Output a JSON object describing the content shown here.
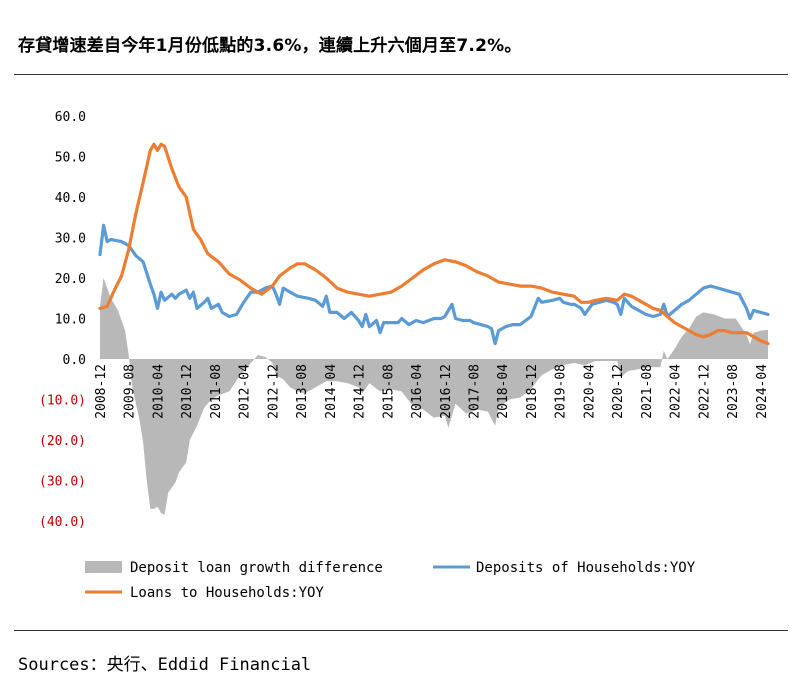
{
  "title": "存貸增速差自今年1月份低點的3.6%，連續上升六個月至7.2%。",
  "source": "Sources：央行、Eddid Financial",
  "colors": {
    "difference": "#b8b8b8",
    "deposits": "#5b9bd5",
    "loans": "#ed7d31",
    "negative_label": "#c00000",
    "positive_label": "#000000"
  },
  "chart_data": {
    "type": "line",
    "title": "",
    "xlabel": "",
    "ylabel": "",
    "ylim": [
      -40,
      60
    ],
    "yticks": [
      60,
      50,
      40,
      30,
      20,
      10,
      0,
      -10,
      -20,
      -30,
      -40
    ],
    "ytick_labels": [
      "60.0",
      "50.0",
      "40.0",
      "30.0",
      "20.0",
      "10.0",
      "0.0",
      "(10.0)",
      "(20.0)",
      "(30.0)",
      "(40.0)"
    ],
    "x_tick_labels": [
      "2008-12",
      "2009-08",
      "2010-04",
      "2010-12",
      "2011-08",
      "2012-04",
      "2012-12",
      "2013-08",
      "2014-04",
      "2014-12",
      "2015-08",
      "2016-04",
      "2016-12",
      "2017-08",
      "2018-04",
      "2018-12",
      "2019-08",
      "2020-04",
      "2020-12",
      "2021-08",
      "2022-04",
      "2022-12",
      "2023-08",
      "2024-04"
    ],
    "x_start": "2008-12",
    "x_end": "2024-06",
    "legend_position": "bottom",
    "legend": [
      "Deposit loan growth difference",
      "Deposits of Households:YOY",
      "Loans to Households:YOY"
    ],
    "series": [
      {
        "name": "Deposits of Households:YOY",
        "style": "line",
        "points": [
          [
            "2008-12",
            25.8
          ],
          [
            "2009-01",
            33.0
          ],
          [
            "2009-02",
            29.0
          ],
          [
            "2009-03",
            29.5
          ],
          [
            "2009-06",
            29.0
          ],
          [
            "2009-08",
            28.0
          ],
          [
            "2009-10",
            25.5
          ],
          [
            "2009-12",
            24.0
          ],
          [
            "2010-02",
            18.5
          ],
          [
            "2010-03",
            16.0
          ],
          [
            "2010-04",
            12.5
          ],
          [
            "2010-05",
            16.5
          ],
          [
            "2010-06",
            14.5
          ],
          [
            "2010-08",
            16.0
          ],
          [
            "2010-09",
            15.0
          ],
          [
            "2010-10",
            16.0
          ],
          [
            "2010-12",
            17.0
          ],
          [
            "2011-01",
            15.0
          ],
          [
            "2011-02",
            16.5
          ],
          [
            "2011-03",
            12.5
          ],
          [
            "2011-05",
            14.0
          ],
          [
            "2011-06",
            15.0
          ],
          [
            "2011-07",
            12.5
          ],
          [
            "2011-09",
            13.5
          ],
          [
            "2011-10",
            11.5
          ],
          [
            "2011-12",
            10.5
          ],
          [
            "2012-02",
            11.0
          ],
          [
            "2012-04",
            14.0
          ],
          [
            "2012-06",
            16.5
          ],
          [
            "2012-08",
            16.5
          ],
          [
            "2012-10",
            17.5
          ],
          [
            "2012-12",
            18.0
          ],
          [
            "2013-01",
            16.0
          ],
          [
            "2013-02",
            13.5
          ],
          [
            "2013-03",
            17.5
          ],
          [
            "2013-05",
            16.5
          ],
          [
            "2013-07",
            15.5
          ],
          [
            "2013-10",
            15.0
          ],
          [
            "2013-12",
            14.5
          ],
          [
            "2014-02",
            13.0
          ],
          [
            "2014-03",
            15.5
          ],
          [
            "2014-04",
            11.5
          ],
          [
            "2014-06",
            11.5
          ],
          [
            "2014-08",
            10.0
          ],
          [
            "2014-10",
            11.5
          ],
          [
            "2014-12",
            9.5
          ],
          [
            "2015-01",
            8.0
          ],
          [
            "2015-02",
            11.0
          ],
          [
            "2015-03",
            8.0
          ],
          [
            "2015-05",
            9.5
          ],
          [
            "2015-06",
            6.5
          ],
          [
            "2015-07",
            9.0
          ],
          [
            "2015-09",
            9.0
          ],
          [
            "2015-11",
            9.0
          ],
          [
            "2015-12",
            10.0
          ],
          [
            "2016-02",
            8.5
          ],
          [
            "2016-04",
            9.5
          ],
          [
            "2016-06",
            9.0
          ],
          [
            "2016-09",
            10.0
          ],
          [
            "2016-11",
            10.0
          ],
          [
            "2016-12",
            10.5
          ],
          [
            "2017-02",
            13.5
          ],
          [
            "2017-03",
            10.0
          ],
          [
            "2017-05",
            9.5
          ],
          [
            "2017-07",
            9.5
          ],
          [
            "2017-08",
            9.0
          ],
          [
            "2017-10",
            8.5
          ],
          [
            "2017-12",
            8.0
          ],
          [
            "2018-01",
            7.5
          ],
          [
            "2018-02",
            3.8
          ],
          [
            "2018-03",
            7.0
          ],
          [
            "2018-05",
            8.0
          ],
          [
            "2018-07",
            8.5
          ],
          [
            "2018-09",
            8.5
          ],
          [
            "2018-12",
            10.5
          ],
          [
            "2019-02",
            15.0
          ],
          [
            "2019-03",
            14.0
          ],
          [
            "2019-06",
            14.5
          ],
          [
            "2019-08",
            15.0
          ],
          [
            "2019-09",
            14.0
          ],
          [
            "2019-11",
            13.5
          ],
          [
            "2019-12",
            13.5
          ],
          [
            "2020-02",
            12.5
          ],
          [
            "2020-03",
            11.0
          ],
          [
            "2020-05",
            13.5
          ],
          [
            "2020-07",
            14.0
          ],
          [
            "2020-09",
            14.5
          ],
          [
            "2020-11",
            14.0
          ],
          [
            "2020-12",
            13.5
          ],
          [
            "2021-01",
            11.0
          ],
          [
            "2021-02",
            15.0
          ],
          [
            "2021-04",
            13.0
          ],
          [
            "2021-06",
            12.0
          ],
          [
            "2021-08",
            11.0
          ],
          [
            "2021-10",
            10.5
          ],
          [
            "2021-12",
            11.0
          ],
          [
            "2022-01",
            13.5
          ],
          [
            "2022-02",
            10.5
          ],
          [
            "2022-04",
            12.0
          ],
          [
            "2022-06",
            13.5
          ],
          [
            "2022-08",
            14.5
          ],
          [
            "2022-10",
            16.0
          ],
          [
            "2022-12",
            17.5
          ],
          [
            "2023-02",
            18.0
          ],
          [
            "2023-04",
            17.5
          ],
          [
            "2023-06",
            17.0
          ],
          [
            "2023-08",
            16.5
          ],
          [
            "2023-10",
            16.0
          ],
          [
            "2023-12",
            12.5
          ],
          [
            "2024-01",
            10.0
          ],
          [
            "2024-02",
            12.0
          ],
          [
            "2024-04",
            11.5
          ],
          [
            "2024-06",
            11.0
          ]
        ]
      },
      {
        "name": "Loans to Households:YOY",
        "style": "line",
        "points": [
          [
            "2008-12",
            12.5
          ],
          [
            "2009-02",
            13.0
          ],
          [
            "2009-04",
            17.0
          ],
          [
            "2009-06",
            20.5
          ],
          [
            "2009-08",
            27.0
          ],
          [
            "2009-10",
            36.0
          ],
          [
            "2009-12",
            43.5
          ],
          [
            "2010-02",
            51.5
          ],
          [
            "2010-03",
            53.0
          ],
          [
            "2010-04",
            51.5
          ],
          [
            "2010-05",
            53.0
          ],
          [
            "2010-06",
            52.5
          ],
          [
            "2010-08",
            47.0
          ],
          [
            "2010-10",
            42.5
          ],
          [
            "2010-12",
            40.0
          ],
          [
            "2011-02",
            32.0
          ],
          [
            "2011-04",
            29.5
          ],
          [
            "2011-06",
            26.0
          ],
          [
            "2011-09",
            24.0
          ],
          [
            "2011-12",
            21.0
          ],
          [
            "2012-03",
            19.5
          ],
          [
            "2012-06",
            17.5
          ],
          [
            "2012-09",
            16.0
          ],
          [
            "2012-12",
            18.0
          ],
          [
            "2013-02",
            20.5
          ],
          [
            "2013-05",
            22.5
          ],
          [
            "2013-07",
            23.5
          ],
          [
            "2013-09",
            23.5
          ],
          [
            "2013-12",
            22.0
          ],
          [
            "2014-03",
            20.0
          ],
          [
            "2014-06",
            17.5
          ],
          [
            "2014-09",
            16.5
          ],
          [
            "2014-12",
            16.0
          ],
          [
            "2015-03",
            15.5
          ],
          [
            "2015-06",
            16.0
          ],
          [
            "2015-09",
            16.5
          ],
          [
            "2015-12",
            18.0
          ],
          [
            "2016-03",
            20.0
          ],
          [
            "2016-06",
            22.0
          ],
          [
            "2016-09",
            23.5
          ],
          [
            "2016-12",
            24.5
          ],
          [
            "2017-03",
            24.0
          ],
          [
            "2017-06",
            23.0
          ],
          [
            "2017-09",
            21.5
          ],
          [
            "2017-12",
            20.5
          ],
          [
            "2018-03",
            19.0
          ],
          [
            "2018-06",
            18.5
          ],
          [
            "2018-09",
            18.0
          ],
          [
            "2018-12",
            18.0
          ],
          [
            "2019-03",
            17.5
          ],
          [
            "2019-06",
            16.5
          ],
          [
            "2019-09",
            16.0
          ],
          [
            "2019-12",
            15.5
          ],
          [
            "2020-02",
            14.0
          ],
          [
            "2020-04",
            14.0
          ],
          [
            "2020-06",
            14.5
          ],
          [
            "2020-09",
            15.0
          ],
          [
            "2020-12",
            14.5
          ],
          [
            "2021-02",
            16.0
          ],
          [
            "2021-04",
            15.5
          ],
          [
            "2021-06",
            14.5
          ],
          [
            "2021-08",
            13.5
          ],
          [
            "2021-10",
            12.5
          ],
          [
            "2021-12",
            12.0
          ],
          [
            "2022-02",
            10.5
          ],
          [
            "2022-04",
            9.0
          ],
          [
            "2022-06",
            8.0
          ],
          [
            "2022-08",
            7.0
          ],
          [
            "2022-10",
            6.0
          ],
          [
            "2022-12",
            5.5
          ],
          [
            "2023-02",
            6.0
          ],
          [
            "2023-04",
            7.0
          ],
          [
            "2023-06",
            7.0
          ],
          [
            "2023-08",
            6.5
          ],
          [
            "2023-10",
            6.5
          ],
          [
            "2023-12",
            6.5
          ],
          [
            "2024-02",
            5.5
          ],
          [
            "2024-04",
            4.5
          ],
          [
            "2024-06",
            3.8
          ]
        ]
      },
      {
        "name": "Deposit loan growth difference",
        "style": "area",
        "points": [
          [
            "2008-12",
            13.0
          ],
          [
            "2009-01",
            20.0
          ],
          [
            "2009-03",
            15.0
          ],
          [
            "2009-05",
            12.0
          ],
          [
            "2009-07",
            7.0
          ],
          [
            "2009-08",
            1.0
          ],
          [
            "2009-09",
            -7.0
          ],
          [
            "2009-11",
            -15.0
          ],
          [
            "2009-12",
            -20.5
          ],
          [
            "2010-01",
            -30.0
          ],
          [
            "2010-02",
            -37.0
          ],
          [
            "2010-03",
            -37.0
          ],
          [
            "2010-04",
            -36.5
          ],
          [
            "2010-05",
            -38.0
          ],
          [
            "2010-06",
            -38.5
          ],
          [
            "2010-07",
            -33.0
          ],
          [
            "2010-09",
            -30.5
          ],
          [
            "2010-10",
            -28.0
          ],
          [
            "2010-12",
            -25.5
          ],
          [
            "2011-01",
            -20.0
          ],
          [
            "2011-03",
            -16.5
          ],
          [
            "2011-05",
            -12.0
          ],
          [
            "2011-07",
            -10.0
          ],
          [
            "2011-09",
            -9.0
          ],
          [
            "2011-12",
            -8.0
          ],
          [
            "2012-03",
            -4.0
          ],
          [
            "2012-06",
            -1.0
          ],
          [
            "2012-08",
            1.0
          ],
          [
            "2012-10",
            0.5
          ],
          [
            "2012-12",
            -1.0
          ],
          [
            "2013-01",
            -4.0
          ],
          [
            "2013-03",
            -5.0
          ],
          [
            "2013-05",
            -7.0
          ],
          [
            "2013-07",
            -8.0
          ],
          [
            "2013-09",
            -8.5
          ],
          [
            "2013-12",
            -7.0
          ],
          [
            "2014-03",
            -5.5
          ],
          [
            "2014-06",
            -5.5
          ],
          [
            "2014-09",
            -6.0
          ],
          [
            "2014-12",
            -7.0
          ],
          [
            "2015-01",
            -8.5
          ],
          [
            "2015-03",
            -6.0
          ],
          [
            "2015-06",
            -8.0
          ],
          [
            "2015-09",
            -7.5
          ],
          [
            "2015-12",
            -8.0
          ],
          [
            "2016-03",
            -11.5
          ],
          [
            "2016-06",
            -12.5
          ],
          [
            "2016-09",
            -14.5
          ],
          [
            "2016-12",
            -14.0
          ],
          [
            "2017-01",
            -17.0
          ],
          [
            "2017-03",
            -11.0
          ],
          [
            "2017-06",
            -13.5
          ],
          [
            "2017-09",
            -12.5
          ],
          [
            "2017-12",
            -13.0
          ],
          [
            "2018-02",
            -16.5
          ],
          [
            "2018-03",
            -12.0
          ],
          [
            "2018-06",
            -10.0
          ],
          [
            "2018-09",
            -9.5
          ],
          [
            "2018-12",
            -7.5
          ],
          [
            "2019-02",
            -5.0
          ],
          [
            "2019-03",
            -4.0
          ],
          [
            "2019-06",
            -2.5
          ],
          [
            "2019-09",
            -1.5
          ],
          [
            "2019-12",
            -1.0
          ],
          [
            "2020-03",
            -1.5
          ],
          [
            "2020-06",
            -0.5
          ],
          [
            "2020-09",
            -0.5
          ],
          [
            "2020-12",
            -0.5
          ],
          [
            "2021-01",
            -4.5
          ],
          [
            "2021-03",
            -3.0
          ],
          [
            "2021-06",
            -2.5
          ],
          [
            "2021-09",
            -2.0
          ],
          [
            "2021-12",
            -2.0
          ],
          [
            "2022-01",
            2.0
          ],
          [
            "2022-02",
            0.0
          ],
          [
            "2022-04",
            2.5
          ],
          [
            "2022-06",
            5.5
          ],
          [
            "2022-08",
            7.5
          ],
          [
            "2022-10",
            10.5
          ],
          [
            "2022-12",
            11.5
          ],
          [
            "2023-03",
            11.0
          ],
          [
            "2023-06",
            10.0
          ],
          [
            "2023-09",
            10.0
          ],
          [
            "2023-12",
            6.0
          ],
          [
            "2024-01",
            3.6
          ],
          [
            "2024-02",
            6.5
          ],
          [
            "2024-04",
            7.0
          ],
          [
            "2024-06",
            7.2
          ]
        ]
      }
    ]
  }
}
